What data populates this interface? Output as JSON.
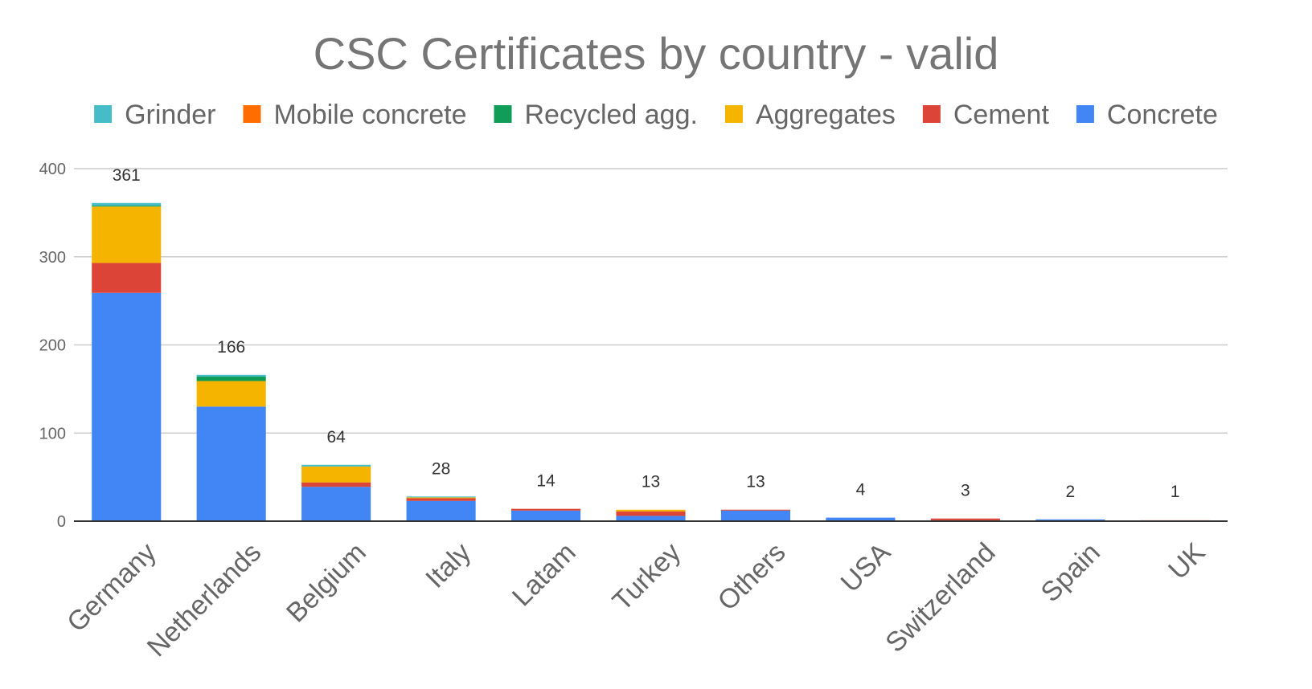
{
  "chart_data": {
    "type": "bar",
    "stacked": true,
    "title": "CSC Certificates by country - valid",
    "xlabel": "",
    "ylabel": "",
    "ylim": [
      0,
      400
    ],
    "yticks": [
      0,
      100,
      200,
      300,
      400
    ],
    "grid": true,
    "legend_position": "top",
    "categories": [
      "Germany",
      "Netherlands",
      "Belgium",
      "Italy",
      "Latam",
      "Turkey",
      "Others",
      "USA",
      "Switzerland",
      "Spain",
      "UK"
    ],
    "totals": [
      361,
      166,
      64,
      28,
      14,
      13,
      13,
      4,
      3,
      2,
      1
    ],
    "legend": [
      "Grinder",
      "Mobile concrete",
      "Recycled agg.",
      "Aggregates",
      "Cement",
      "Concrete"
    ],
    "series": [
      {
        "name": "Concrete",
        "color": "#4285f4",
        "values": [
          259,
          130,
          39,
          23,
          12,
          6,
          12,
          4,
          1,
          2,
          0
        ]
      },
      {
        "name": "Cement",
        "color": "#db4437",
        "values": [
          34,
          0,
          5,
          3,
          2,
          5,
          1,
          0,
          2,
          0,
          1
        ]
      },
      {
        "name": "Aggregates",
        "color": "#f4b400",
        "values": [
          64,
          29,
          18,
          1,
          0,
          2,
          0,
          0,
          0,
          0,
          0
        ]
      },
      {
        "name": "Recycled agg.",
        "color": "#0f9d58",
        "values": [
          1,
          5,
          0,
          0,
          0,
          0,
          0,
          0,
          0,
          0,
          0
        ]
      },
      {
        "name": "Mobile concrete",
        "color": "#ff6d01",
        "values": [
          0,
          0,
          0,
          0,
          0,
          0,
          0,
          0,
          0,
          0,
          0
        ]
      },
      {
        "name": "Grinder",
        "color": "#46bdc6",
        "values": [
          3,
          2,
          2,
          1,
          0,
          0,
          0,
          0,
          0,
          0,
          0
        ]
      }
    ]
  }
}
